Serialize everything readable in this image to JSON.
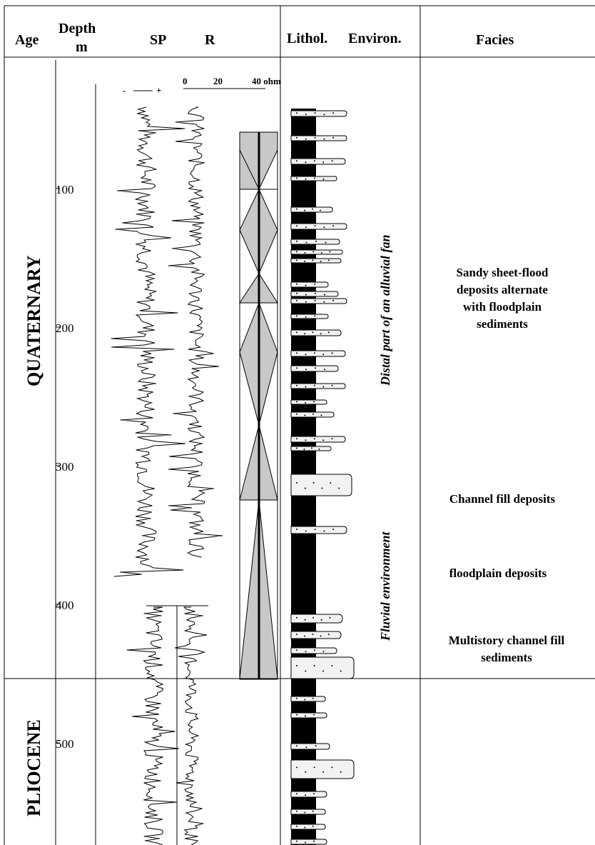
{
  "header": {
    "age": "Age",
    "depth_line1": "Depth",
    "depth_line2": "m",
    "sp": "SP",
    "r": "R",
    "lithol": "Lithol.",
    "environ": "Environ.",
    "facies": "Facies"
  },
  "resistivity_scale": {
    "minus_sign": "-",
    "plus_sign": "+",
    "tick_0": "0",
    "tick_20": "20",
    "tick_40": "40 ohm"
  },
  "depth_ticks": [
    "100",
    "200",
    "300",
    "400",
    "500"
  ],
  "ages": {
    "upper": "QUATERNARY",
    "lower": "PLIOCENE"
  },
  "environments": {
    "upper": "Distal part of an alluvial fan",
    "lower": "Fluvial environment"
  },
  "facies": {
    "sheet_flood": [
      "Sandy sheet-flood",
      "deposits alternate",
      "with floodplain",
      "sediments"
    ],
    "channel_fill": "Channel fill deposits",
    "floodplain": "floodplain deposits",
    "multistory": [
      "Multistory channel fill",
      "sediments"
    ]
  },
  "colors": {
    "line": "#000000",
    "sand": "#f2f2f2",
    "cycle_fill": "#c8c8c8",
    "shale": "#000000"
  }
}
